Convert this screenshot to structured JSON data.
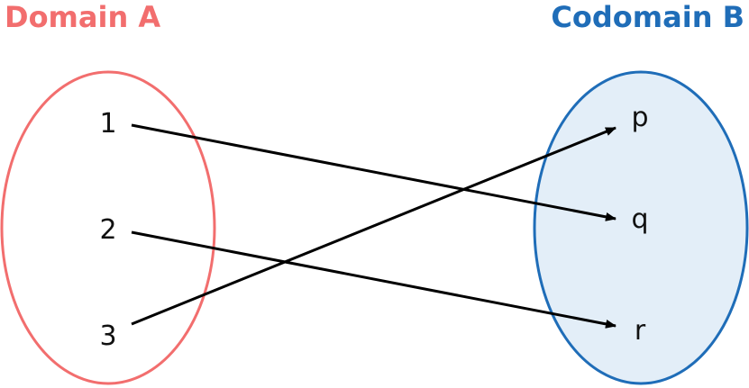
{
  "domain_set": {
    "title": "Domain A",
    "color": "#F26E6E",
    "fill": "#FFFFFF",
    "elements": [
      "1",
      "2",
      "3"
    ]
  },
  "codomain_set": {
    "title": "Codomain B",
    "color": "#1F6DB8",
    "fill": "#E3EEF8",
    "elements": [
      "p",
      "q",
      "r"
    ]
  },
  "mappings": [
    {
      "from": "1",
      "to": "q"
    },
    {
      "from": "2",
      "to": "r"
    },
    {
      "from": "3",
      "to": "p"
    }
  ],
  "arrow_color": "#000000"
}
